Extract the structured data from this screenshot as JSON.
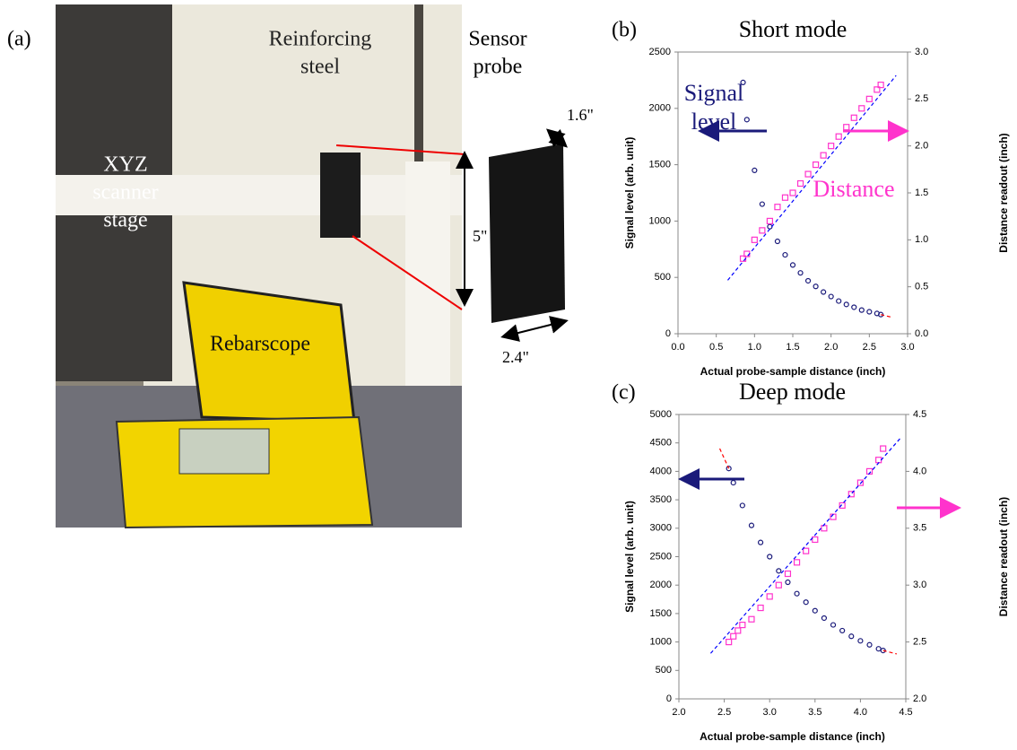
{
  "photo": {
    "panel_label": "(a)",
    "labels": [
      [
        "XYZ",
        "scanner",
        "stage"
      ],
      [
        "Reinforcing",
        "steel"
      ],
      [
        "Sensor",
        "probe"
      ],
      [
        "Rebarscope"
      ],
      [
        "1.6\""
      ],
      [
        "5\""
      ],
      [
        "2.4\""
      ]
    ]
  },
  "chart_data": [
    {
      "type": "scatter",
      "panel_label": "(b)",
      "title": "Short mode",
      "xlabel": "Actual probe-sample distance (inch)",
      "ylabel": "Signal level (arb. unit)",
      "y2label": "Distance readout (inch)",
      "xlim": [
        0,
        3
      ],
      "xticks": [
        {
          "value": 0,
          "label": "0.0"
        },
        {
          "value": 0.5,
          "label": "0.5"
        },
        {
          "value": 1,
          "label": "1.0"
        },
        {
          "value": 1.5,
          "label": "1.5"
        },
        {
          "value": 2,
          "label": "2.0"
        },
        {
          "value": 2.5,
          "label": "2.5"
        },
        {
          "value": 3,
          "label": "3.0"
        }
      ],
      "ylim": [
        0,
        2500
      ],
      "yticks": [
        0,
        500,
        1000,
        1500,
        2000,
        2500
      ],
      "y2lim": [
        0,
        3
      ],
      "y2ticks": [
        {
          "value": 0,
          "label": "0.0"
        },
        {
          "value": 0.5,
          "label": "0.5"
        },
        {
          "value": 1,
          "label": "1.0"
        },
        {
          "value": 1.5,
          "label": "1.5"
        },
        {
          "value": 2,
          "label": "2.0"
        },
        {
          "value": 2.5,
          "label": "2.5"
        },
        {
          "value": 3,
          "label": "3.0"
        }
      ],
      "annotations": [
        {
          "text": [
            "Signal",
            "level"
          ],
          "color": "#1a1a7a",
          "arrow": "left"
        },
        {
          "text": [
            "Distance"
          ],
          "color": "#ff33cc",
          "arrow": "right"
        }
      ],
      "series": [
        {
          "color": "#1a1a7a",
          "marker": "circle",
          "x": [
            0.85,
            0.9,
            1.0,
            1.1,
            1.2,
            1.3,
            1.4,
            1.5,
            1.6,
            1.7,
            1.8,
            1.9,
            2.0,
            2.1,
            2.2,
            2.3,
            2.4,
            2.5,
            2.6,
            2.65
          ],
          "values": [
            2230,
            1900,
            1450,
            1150,
            950,
            820,
            700,
            610,
            540,
            470,
            420,
            370,
            330,
            290,
            260,
            235,
            210,
            195,
            180,
            170
          ]
        },
        {
          "color": "#ff33cc",
          "marker": "square",
          "axis": "y2",
          "x": [
            0.85,
            0.9,
            1.0,
            1.1,
            1.2,
            1.3,
            1.4,
            1.5,
            1.6,
            1.7,
            1.8,
            1.9,
            2.0,
            2.1,
            2.2,
            2.3,
            2.4,
            2.5,
            2.6,
            2.65
          ],
          "values": [
            0.8,
            0.85,
            1.0,
            1.1,
            1.2,
            1.35,
            1.45,
            1.5,
            1.6,
            1.7,
            1.8,
            1.9,
            2.0,
            2.1,
            2.2,
            2.3,
            2.4,
            2.5,
            2.6,
            2.65
          ]
        },
        {
          "color": "#ff0000",
          "style": "dashed",
          "x": [
            2.65,
            2.8
          ],
          "values": [
            170,
            145
          ]
        },
        {
          "color": "#0000ff",
          "style": "dashed",
          "axis": "y2",
          "x": [
            0.65,
            2.85
          ],
          "values": [
            0.57,
            2.75
          ]
        }
      ]
    },
    {
      "type": "scatter",
      "panel_label": "(c)",
      "title": "Deep mode",
      "xlabel": "Actual probe-sample distance (inch)",
      "ylabel": "Signal level (arb. unit)",
      "y2label": "Distance readout (inch)",
      "xlim": [
        2,
        4.5
      ],
      "xticks": [
        {
          "value": 2,
          "label": "2.0"
        },
        {
          "value": 2.5,
          "label": "2.5"
        },
        {
          "value": 3,
          "label": "3.0"
        },
        {
          "value": 3.5,
          "label": "3.5"
        },
        {
          "value": 4,
          "label": "4.0"
        },
        {
          "value": 4.5,
          "label": "4.5"
        }
      ],
      "ylim": [
        0,
        5000
      ],
      "yticks": [
        0,
        500,
        1000,
        1500,
        2000,
        2500,
        3000,
        3500,
        4000,
        4500,
        5000
      ],
      "y2lim": [
        2,
        4.5
      ],
      "y2ticks": [
        {
          "value": 2,
          "label": "2.0"
        },
        {
          "value": 2.5,
          "label": "2.5"
        },
        {
          "value": 3,
          "label": "3.0"
        },
        {
          "value": 3.5,
          "label": "3.5"
        },
        {
          "value": 4,
          "label": "4.0"
        },
        {
          "value": 4.5,
          "label": "4.5"
        }
      ],
      "annotations": [
        {
          "color": "#1a1a7a",
          "arrow": "left"
        },
        {
          "color": "#ff33cc",
          "arrow": "right"
        }
      ],
      "series": [
        {
          "color": "#1a1a7a",
          "marker": "circle",
          "x": [
            2.55,
            2.6,
            2.7,
            2.8,
            2.9,
            3.0,
            3.1,
            3.2,
            3.3,
            3.4,
            3.5,
            3.6,
            3.7,
            3.8,
            3.9,
            4.0,
            4.1,
            4.2,
            4.25
          ],
          "values": [
            4050,
            3800,
            3400,
            3050,
            2750,
            2500,
            2250,
            2050,
            1850,
            1700,
            1550,
            1420,
            1300,
            1200,
            1100,
            1020,
            950,
            880,
            850
          ]
        },
        {
          "color": "#ff33cc",
          "marker": "square",
          "axis": "y2",
          "x": [
            2.55,
            2.6,
            2.65,
            2.7,
            2.8,
            2.9,
            3.0,
            3.1,
            3.2,
            3.3,
            3.4,
            3.5,
            3.6,
            3.7,
            3.8,
            3.9,
            4.0,
            4.1,
            4.2,
            4.25
          ],
          "values": [
            2.5,
            2.55,
            2.6,
            2.65,
            2.7,
            2.8,
            2.9,
            3.0,
            3.1,
            3.2,
            3.3,
            3.4,
            3.5,
            3.6,
            3.7,
            3.8,
            3.9,
            4.0,
            4.1,
            4.2
          ]
        },
        {
          "color": "#ff0000",
          "style": "dashed",
          "x": [
            2.45,
            2.55
          ],
          "values": [
            4400,
            4050
          ]
        },
        {
          "color": "#ff0000",
          "style": "dashed",
          "x": [
            4.25,
            4.4
          ],
          "values": [
            850,
            790
          ]
        },
        {
          "color": "#0000ff",
          "style": "dashed",
          "axis": "y2",
          "x": [
            2.35,
            4.45
          ],
          "values": [
            2.4,
            4.3
          ]
        }
      ]
    }
  ]
}
